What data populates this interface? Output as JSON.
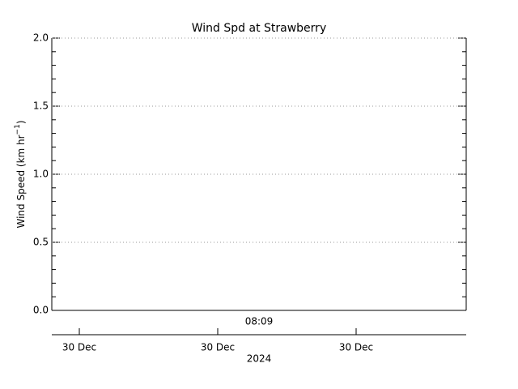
{
  "chart_data": {
    "type": "line",
    "title": "Wind Spd at Strawberry",
    "ylabel": {
      "text": "Wind Speed (km hr",
      "superscript": "−1",
      "suffix": ")"
    },
    "ylim": [
      0,
      2
    ],
    "yticks": [
      {
        "value": 0,
        "label": "0.0"
      },
      0.5,
      {
        "value": 1,
        "label": "1.0"
      },
      1.5,
      {
        "value": 2,
        "label": "2.0"
      }
    ],
    "grid": true,
    "series": [],
    "x_top_label": "08:09",
    "xtick_labels": [
      "30 Dec",
      "30 Dec",
      "30 Dec"
    ],
    "xlabel": "2024"
  }
}
